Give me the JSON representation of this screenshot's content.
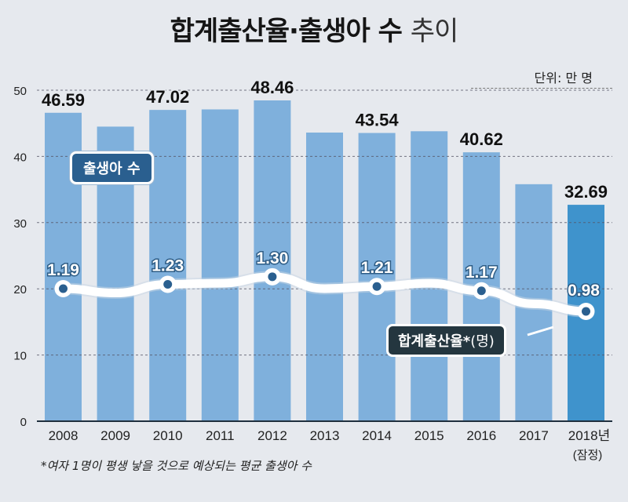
{
  "title": {
    "main": "합계출산율·출생아 수",
    "suffix": "추이"
  },
  "unit_label": "단위: 만 명",
  "legend": {
    "births_badge": "출생아 수",
    "tfr_badge": "합계출산율*",
    "tfr_unit": "(명)"
  },
  "footnote": "*여자 1명이 평생 낳을 것으로 예상되는 평균 출생아 수",
  "x_note_last": "(잠정)",
  "colors": {
    "bar": "#7fb0dc",
    "bar_highlight": "#3f93cc",
    "line": "#ffffff",
    "marker": "#2a5f8f",
    "background": "#e6e9ee"
  },
  "chart_data": {
    "type": "bar+line",
    "title": "합계출산율·출생아 수 추이",
    "unit": "단위: 만 명",
    "categories": [
      "2008",
      "2009",
      "2010",
      "2011",
      "2012",
      "2013",
      "2014",
      "2015",
      "2016",
      "2017",
      "2018년"
    ],
    "series": [
      {
        "name": "출생아 수",
        "type": "bar",
        "unit": "만 명",
        "values": [
          46.59,
          44.5,
          47.02,
          47.1,
          48.46,
          43.6,
          43.54,
          43.8,
          40.62,
          35.8,
          32.69
        ],
        "labels_shown": {
          "2008": "46.59",
          "2010": "47.02",
          "2012": "48.46",
          "2014": "43.54",
          "2016": "40.62",
          "2018년": "32.69"
        }
      },
      {
        "name": "합계출산율*(명)",
        "type": "line",
        "unit": "명",
        "values": [
          1.19,
          1.15,
          1.23,
          1.24,
          1.3,
          1.19,
          1.21,
          1.24,
          1.17,
          1.05,
          0.98
        ],
        "labels_shown": {
          "2008": "1.19",
          "2010": "1.23",
          "2012": "1.30",
          "2014": "1.21",
          "2016": "1.17",
          "2018년": "0.98"
        }
      }
    ],
    "yticks": [
      0,
      10,
      20,
      30,
      40,
      50
    ],
    "ylim": [
      0,
      50
    ],
    "grid": "dashed horizontal",
    "annotation": "2018년 (잠정)",
    "xlabel": "",
    "ylabel": ""
  }
}
